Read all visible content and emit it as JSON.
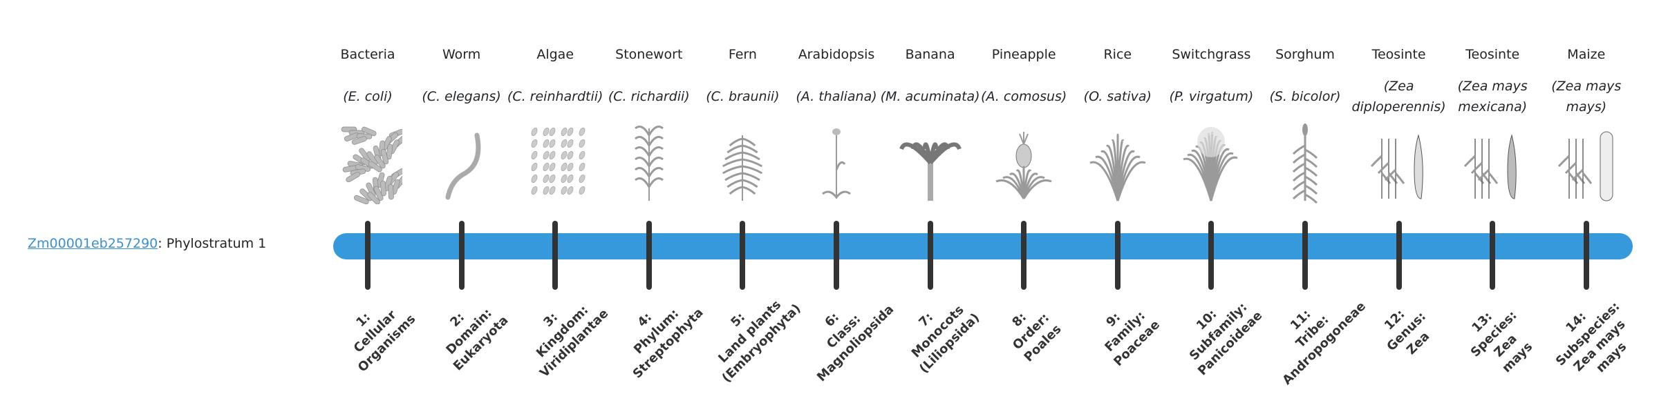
{
  "gene": {
    "id_link": "Zm00001eb257290",
    "suffix": ": Phylostratum 1"
  },
  "bar_color": "#3699db",
  "strata": [
    {
      "common": "Bacteria",
      "scientific": "(E. coli)",
      "icon": "bacteria-image",
      "rank": [
        "1:",
        "Cellular",
        "Organisms"
      ]
    },
    {
      "common": "Worm",
      "scientific": "(C. elegans)",
      "icon": "worm-image",
      "rank": [
        "2:",
        "Domain:",
        "Eukaryota"
      ]
    },
    {
      "common": "Algae",
      "scientific": "(C. reinhardtii)",
      "icon": "algae-image",
      "rank": [
        "3:",
        "Kingdom:",
        "Viridiplantae"
      ]
    },
    {
      "common": "Stonewort",
      "scientific": "(C. richardii)",
      "icon": "stonewort-image",
      "rank": [
        "4:",
        "Phylum:",
        "Streptophyta"
      ]
    },
    {
      "common": "Fern",
      "scientific": "(C. braunii)",
      "icon": "fern-image",
      "rank": [
        "5:",
        "Land plants",
        "(Embryophyta)"
      ]
    },
    {
      "common": "Arabidopsis",
      "scientific": "(A. thaliana)",
      "icon": "arabidopsis-image",
      "rank": [
        "6:",
        "Class:",
        "Magnoliopsida"
      ]
    },
    {
      "common": "Banana",
      "scientific": "(M. acuminata)",
      "icon": "banana-image",
      "rank": [
        "7:",
        "Monocots",
        "(Liliopsida)"
      ]
    },
    {
      "common": "Pineapple",
      "scientific": "(A. comosus)",
      "icon": "pineapple-image",
      "rank": [
        "8:",
        "Order:",
        "Poales"
      ]
    },
    {
      "common": "Rice",
      "scientific": "(O. sativa)",
      "icon": "rice-image",
      "rank": [
        "9:",
        "Family:",
        "Poaceae"
      ]
    },
    {
      "common": "Switchgrass",
      "scientific": "(P. virgatum)",
      "icon": "switchgrass-image",
      "rank": [
        "10:",
        "Subfamily:",
        "Panicoideae"
      ]
    },
    {
      "common": "Sorghum",
      "scientific": "(S. bicolor)",
      "icon": "sorghum-image",
      "rank": [
        "11:",
        "Tribe:",
        "Andropogoneae"
      ]
    },
    {
      "common": "Teosinte",
      "scientific": "(Zea diploperennis)",
      "icon": "teosinte-image",
      "rank": [
        "12:",
        "Genus:",
        "Zea"
      ]
    },
    {
      "common": "Teosinte",
      "scientific": "(Zea mays mexicana)",
      "icon": "teosinte-mexicana-image",
      "rank": [
        "13:",
        "Species:",
        "Zea",
        "mays"
      ]
    },
    {
      "common": "Maize",
      "scientific": "(Zea mays mays)",
      "icon": "maize-image",
      "rank": [
        "14:",
        "Subspecies:",
        "Zea mays",
        "mays"
      ]
    }
  ]
}
